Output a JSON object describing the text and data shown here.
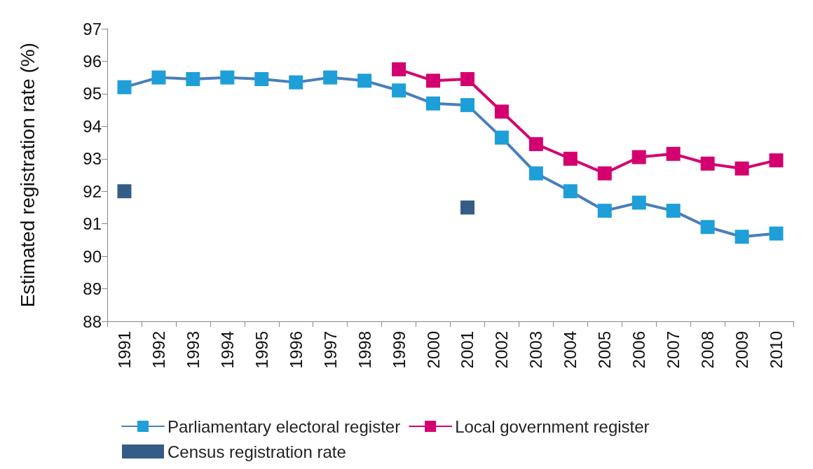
{
  "chart_data": {
    "type": "line",
    "ylabel": "Estimated registration rate (%)",
    "categories": [
      "1991",
      "1992",
      "1993",
      "1994",
      "1995",
      "1996",
      "1997",
      "1998",
      "1999",
      "2000",
      "2001",
      "2002",
      "2003",
      "2004",
      "2005",
      "2006",
      "2007",
      "2008",
      "2009",
      "2010"
    ],
    "series": [
      {
        "name": "Parliamentary electoral register",
        "color": "#1e9fd8",
        "values": [
          95.2,
          95.5,
          95.45,
          95.5,
          95.45,
          95.35,
          95.5,
          95.4,
          95.1,
          94.7,
          94.65,
          93.65,
          92.55,
          92.0,
          91.4,
          91.65,
          91.4,
          90.9,
          90.6,
          90.7
        ]
      },
      {
        "name": "Local government register",
        "color": "#d4006f",
        "values": [
          null,
          null,
          null,
          null,
          null,
          null,
          null,
          null,
          95.75,
          95.4,
          95.45,
          94.45,
          93.45,
          93.0,
          92.55,
          93.05,
          93.15,
          92.85,
          92.7,
          92.95
        ]
      },
      {
        "name": "Census registration rate",
        "type": "scatter",
        "color": "#003466",
        "values": [
          92.0,
          null,
          null,
          null,
          null,
          null,
          null,
          null,
          null,
          null,
          91.5,
          null,
          null,
          null,
          null,
          null,
          null,
          null,
          null,
          null
        ]
      }
    ],
    "ylim": [
      88,
      97
    ],
    "yticks": [
      88,
      89,
      90,
      91,
      92,
      93,
      94,
      95,
      96,
      97
    ],
    "grid": false,
    "legend": "bottom",
    "marker": "square",
    "line_style": "solid"
  }
}
